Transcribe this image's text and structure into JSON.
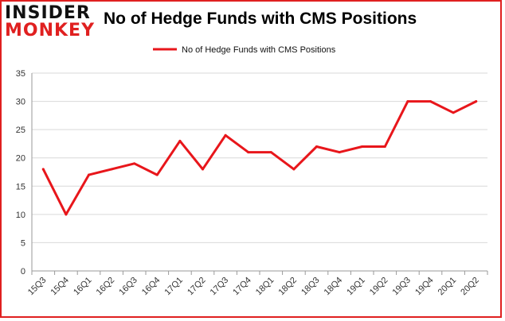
{
  "logo": {
    "line1": "INSIDER",
    "line2": "MONKEY"
  },
  "chart_data": {
    "type": "line",
    "title": "No of Hedge Funds with CMS Positions",
    "xlabel": "",
    "ylabel": "",
    "categories": [
      "15Q3",
      "15Q4",
      "16Q1",
      "16Q2",
      "16Q3",
      "16Q4",
      "17Q1",
      "17Q2",
      "17Q3",
      "17Q4",
      "18Q1",
      "18Q2",
      "18Q3",
      "18Q4",
      "19Q1",
      "19Q2",
      "19Q3",
      "19Q4",
      "20Q1",
      "20Q2"
    ],
    "series": [
      {
        "name": "No of Hedge Funds with CMS Positions",
        "color": "#e8161b",
        "values": [
          18,
          10,
          17,
          18,
          19,
          17,
          23,
          18,
          24,
          21,
          21,
          18,
          22,
          21,
          22,
          22,
          30,
          30,
          28,
          30
        ]
      }
    ],
    "ylim": [
      0,
      35
    ],
    "yticks": [
      0,
      5,
      10,
      15,
      20,
      25,
      30,
      35
    ],
    "grid": true,
    "legend": "top-center"
  }
}
